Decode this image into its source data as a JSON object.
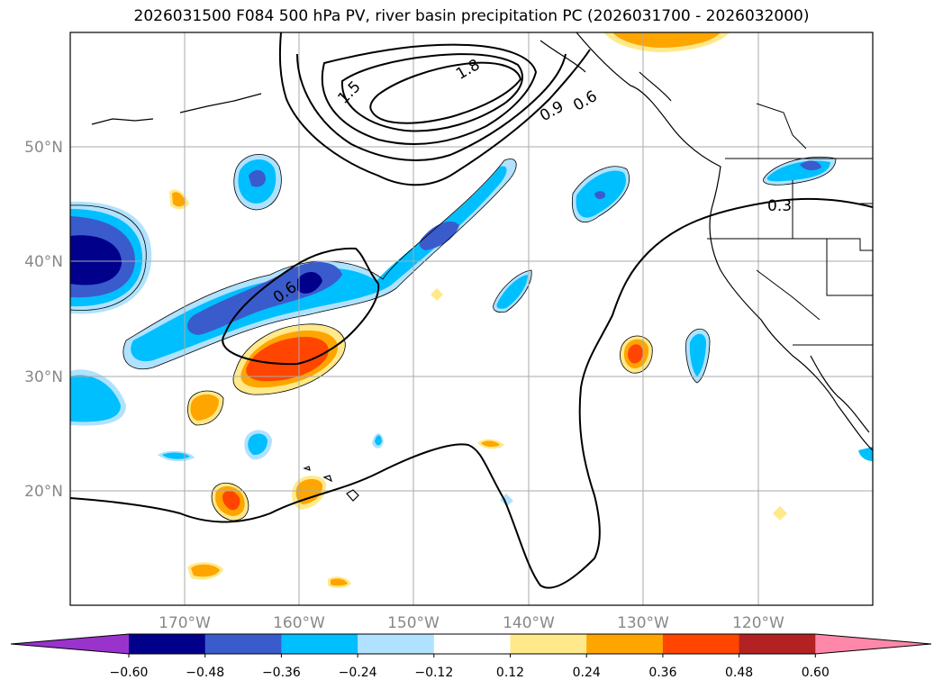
{
  "title": "2026031500 F084 500 hPa PV, river basin precipitation PC (2026031700 - 2026032000)",
  "lat_labels": [
    "50°N",
    "40°N",
    "30°N",
    "20°N"
  ],
  "lon_labels": [
    "170°W",
    "160°W",
    "150°W",
    "140°W",
    "130°W",
    "120°W"
  ],
  "contour_labels": [
    "1.5",
    "1.8",
    "0.9",
    "0.6",
    "0.3",
    "0.6"
  ],
  "colorbar": {
    "ticks": [
      "−0.60",
      "−0.48",
      "−0.36",
      "−0.24",
      "−0.12",
      "0.12",
      "0.24",
      "0.36",
      "0.48",
      "0.60"
    ],
    "colors": [
      "#9933cc",
      "#00008b",
      "#3a5bcc",
      "#00bfff",
      "#b0e2ff",
      "#ffffff",
      "#ffe98a",
      "#ffa500",
      "#ff4500",
      "#b22222",
      "#ff88aa"
    ]
  }
}
